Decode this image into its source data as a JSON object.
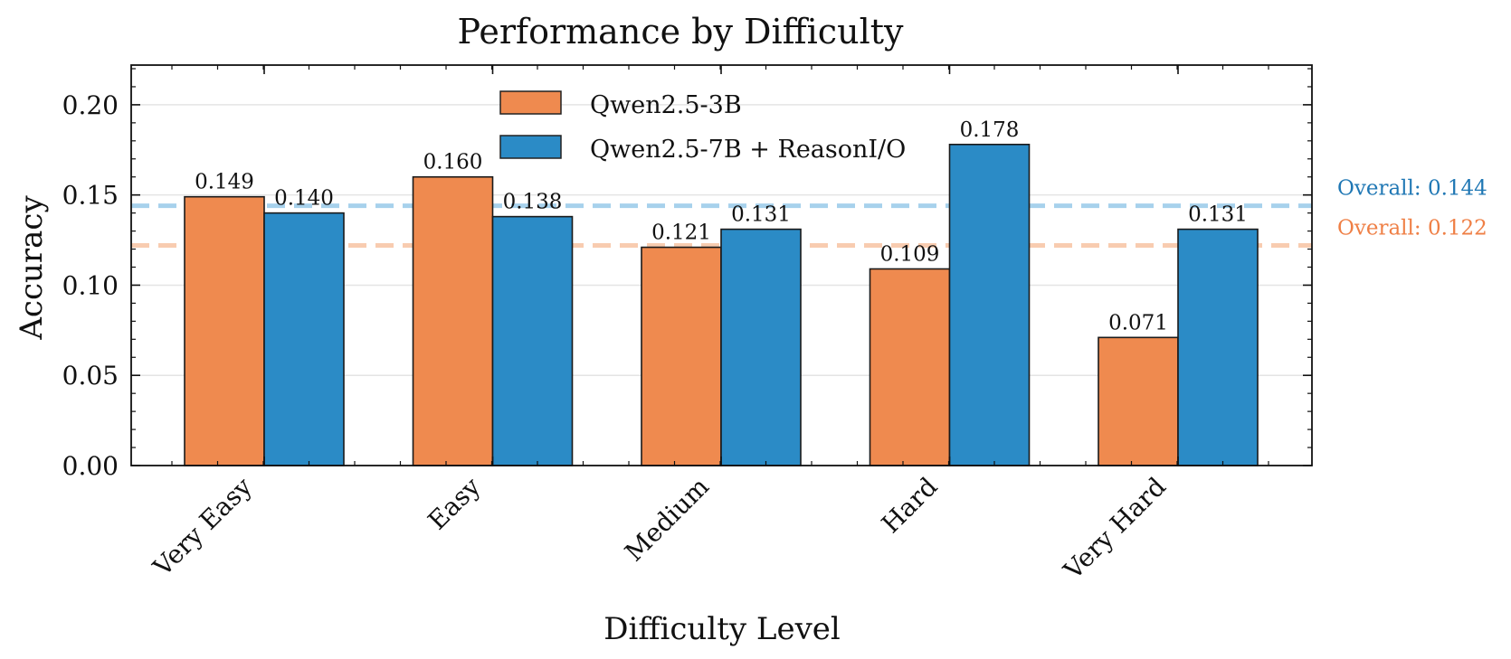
{
  "chart_data": {
    "type": "bar",
    "title": "Performance by Difficulty",
    "xlabel": "Difficulty Level",
    "ylabel": "Accuracy",
    "categories": [
      "Very Easy",
      "Easy",
      "Medium",
      "Hard",
      "Very Hard"
    ],
    "series": [
      {
        "name": "Qwen2.5-3B",
        "color": "#EF8A4F",
        "values": [
          0.149,
          0.16,
          0.121,
          0.109,
          0.071
        ],
        "value_labels": [
          "0.149",
          "0.160",
          "0.121",
          "0.109",
          "0.071"
        ]
      },
      {
        "name": "Qwen2.5-7B + ReasonI/O",
        "color": "#2B8BC6",
        "values": [
          0.14,
          0.138,
          0.131,
          0.178,
          0.131
        ],
        "value_labels": [
          "0.140",
          "0.138",
          "0.131",
          "0.178",
          "0.131"
        ]
      }
    ],
    "ylim": [
      0,
      0.2
    ],
    "yticks": [
      0.0,
      0.05,
      0.1,
      0.15,
      0.2
    ],
    "ytick_labels": [
      "0.00",
      "0.05",
      "0.10",
      "0.15",
      "0.20"
    ],
    "grid": "y",
    "legend": "top-center",
    "reference_lines": [
      {
        "label": "Overall: 0.144",
        "value": 0.144,
        "color": "#1f77b4",
        "line_color": "#9ECDEA"
      },
      {
        "label": "Overall: 0.122",
        "value": 0.122,
        "color": "#EF7F45",
        "line_color": "#F8C7A8"
      }
    ]
  }
}
